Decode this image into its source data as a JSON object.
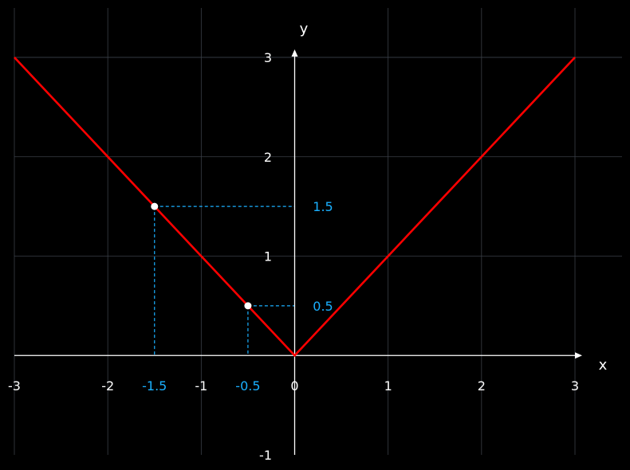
{
  "chart_data": {
    "type": "line",
    "xlabel": "x",
    "ylabel": "y",
    "xlim": [
      -3,
      3
    ],
    "ylim": [
      -1,
      3
    ],
    "grid": true,
    "x_ticks": [
      {
        "value": -3,
        "label": "-3"
      },
      {
        "value": -2,
        "label": "-2"
      },
      {
        "value": -1,
        "label": "-1"
      },
      {
        "value": 0,
        "label": "0"
      },
      {
        "value": 1,
        "label": "1"
      },
      {
        "value": 2,
        "label": "2"
      },
      {
        "value": 3,
        "label": "3"
      }
    ],
    "y_ticks": [
      {
        "value": -1,
        "label": "-1"
      },
      {
        "value": 1,
        "label": "1"
      },
      {
        "value": 2,
        "label": "2"
      },
      {
        "value": 3,
        "label": "3"
      }
    ],
    "series": [
      {
        "color": "#ff0000",
        "x": [
          -3,
          0,
          3
        ],
        "y": [
          3,
          0,
          3
        ]
      }
    ],
    "highlighted_points": [
      {
        "x": -1.5,
        "y": 1.5,
        "x_label": "-1.5",
        "y_label": "1.5"
      },
      {
        "x": -0.5,
        "y": 0.5,
        "x_label": "-0.5",
        "y_label": "0.5"
      }
    ],
    "colors": {
      "background": "#000000",
      "axis": "#ffffff",
      "grid": "#3a3f47",
      "line": "#ff0000",
      "highlight": "#1ab0ff",
      "point": "#ffffff"
    }
  }
}
